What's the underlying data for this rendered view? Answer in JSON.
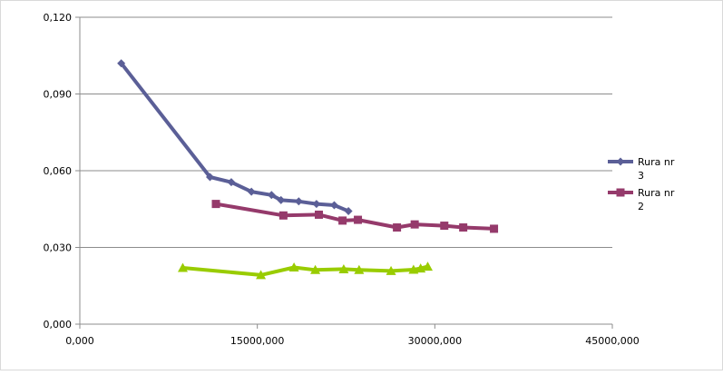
{
  "chart_data": {
    "type": "line",
    "title": "",
    "xlabel": "",
    "ylabel": "",
    "xlim": [
      0,
      45000000
    ],
    "ylim": [
      0,
      0.12
    ],
    "x_ticks": [
      "0,000",
      "15000,000",
      "30000,000",
      "45000,000"
    ],
    "y_ticks": [
      "0,000",
      "0,030",
      "0,060",
      "0,090",
      "0,120"
    ],
    "grid": "horizontal",
    "legend_position": "right",
    "series": [
      {
        "name_lines": [
          "Rura nr",
          "3"
        ],
        "marker": "diamond",
        "color": "#5b5f97",
        "points": [
          [
            3500000,
            0.102
          ],
          [
            11000000,
            0.0575
          ],
          [
            12800000,
            0.0555
          ],
          [
            14500000,
            0.0518
          ],
          [
            16200000,
            0.0505
          ],
          [
            17000000,
            0.0485
          ],
          [
            18500000,
            0.048
          ],
          [
            20000000,
            0.047
          ],
          [
            21500000,
            0.0465
          ],
          [
            22700000,
            0.0442
          ]
        ]
      },
      {
        "name_lines": [
          "Rura nr",
          "2"
        ],
        "marker": "square",
        "color": "#953a6b",
        "points": [
          [
            11500000,
            0.047
          ],
          [
            17200000,
            0.0425
          ],
          [
            20200000,
            0.0428
          ],
          [
            22200000,
            0.0405
          ],
          [
            23500000,
            0.0408
          ],
          [
            26800000,
            0.0378
          ],
          [
            28300000,
            0.039
          ],
          [
            30800000,
            0.0385
          ],
          [
            32400000,
            0.0378
          ],
          [
            35000000,
            0.0373
          ]
        ]
      },
      {
        "name_lines": [],
        "marker": "triangle",
        "color": "#99cc00",
        "points": [
          [
            8700000,
            0.022
          ],
          [
            15300000,
            0.0192
          ],
          [
            18100000,
            0.0222
          ],
          [
            19900000,
            0.0212
          ],
          [
            22300000,
            0.0215
          ],
          [
            23600000,
            0.0212
          ],
          [
            26300000,
            0.0208
          ],
          [
            28200000,
            0.0213
          ],
          [
            28800000,
            0.0218
          ],
          [
            29400000,
            0.0225
          ]
        ]
      }
    ]
  }
}
